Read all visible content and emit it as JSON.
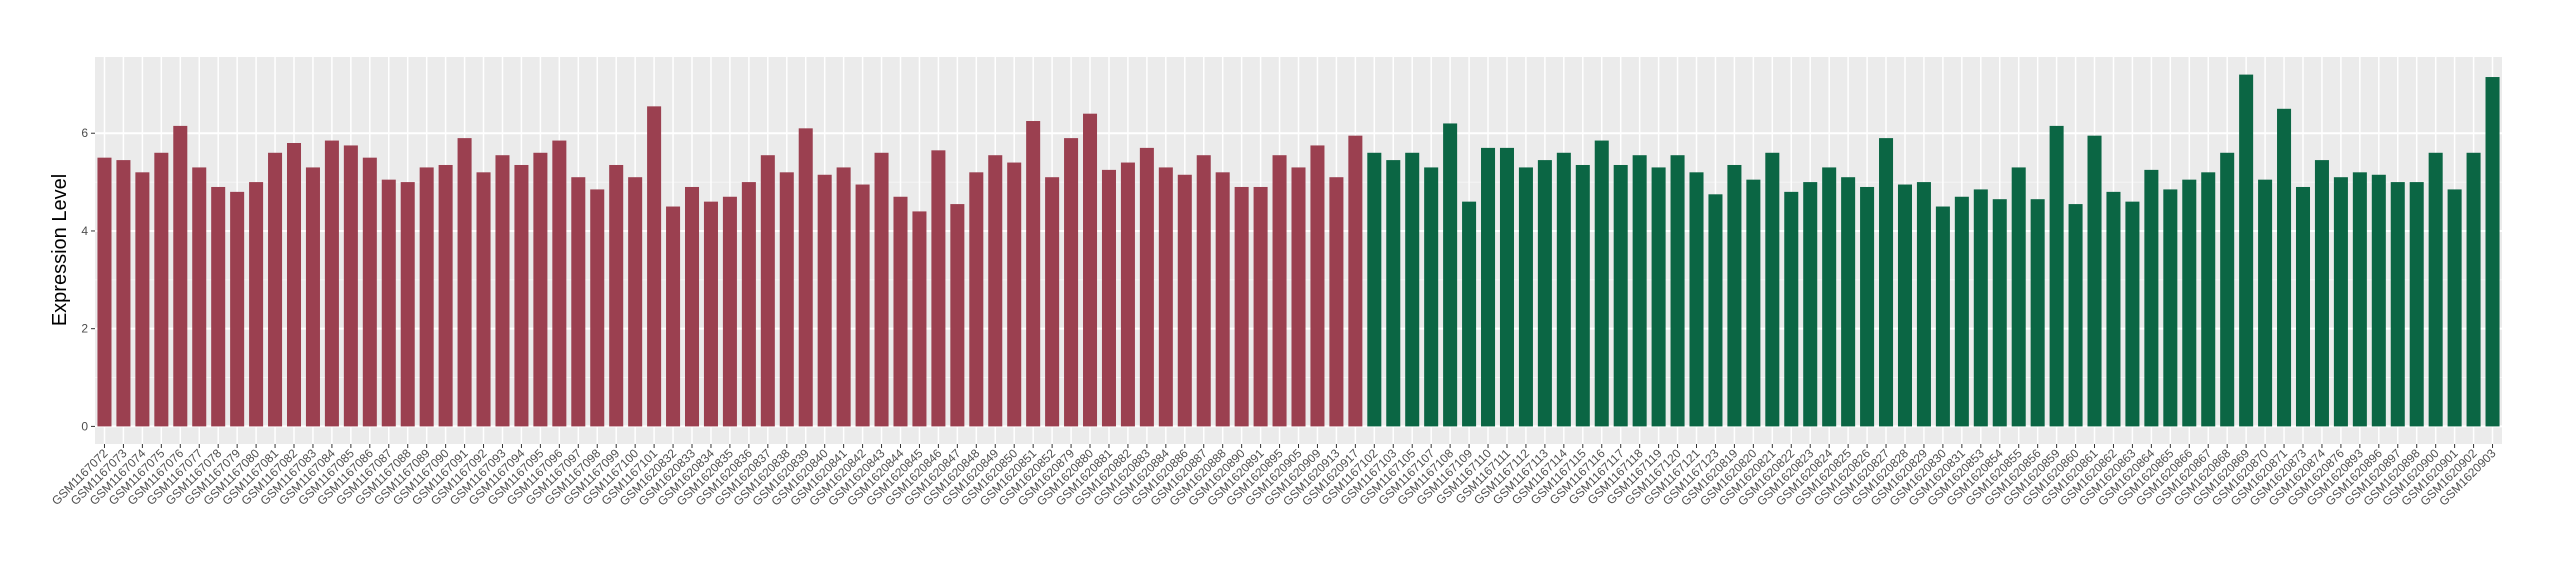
{
  "chart_data": {
    "type": "bar",
    "y_label": "Expression Level",
    "categories": [
      "GSM1167072",
      "GSM1167073",
      "GSM1167074",
      "GSM1167075",
      "GSM1167076",
      "GSM1167077",
      "GSM1167078",
      "GSM1167079",
      "GSM1167080",
      "GSM1167081",
      "GSM1167082",
      "GSM1167083",
      "GSM1167084",
      "GSM1167085",
      "GSM1167086",
      "GSM1167087",
      "GSM1167088",
      "GSM1167089",
      "GSM1167090",
      "GSM1167091",
      "GSM1167092",
      "GSM1167093",
      "GSM1167094",
      "GSM1167095",
      "GSM1167096",
      "GSM1167097",
      "GSM1167098",
      "GSM1167099",
      "GSM1167100",
      "GSM1167101",
      "GSM1620832",
      "GSM1620833",
      "GSM1620834",
      "GSM1620835",
      "GSM1620836",
      "GSM1620837",
      "GSM1620838",
      "GSM1620839",
      "GSM1620840",
      "GSM1620841",
      "GSM1620842",
      "GSM1620843",
      "GSM1620844",
      "GSM1620845",
      "GSM1620846",
      "GSM1620847",
      "GSM1620848",
      "GSM1620849",
      "GSM1620850",
      "GSM1620851",
      "GSM1620852",
      "GSM1620879",
      "GSM1620880",
      "GSM1620881",
      "GSM1620882",
      "GSM1620883",
      "GSM1620884",
      "GSM1620886",
      "GSM1620887",
      "GSM1620888",
      "GSM1620890",
      "GSM1620891",
      "GSM1620895",
      "GSM1620905",
      "GSM1620909",
      "GSM1620913",
      "GSM1620917",
      "GSM1167102",
      "GSM1167103",
      "GSM1167105",
      "GSM1167107",
      "GSM1167108",
      "GSM1167109",
      "GSM1167110",
      "GSM1167111",
      "GSM1167112",
      "GSM1167113",
      "GSM1167114",
      "GSM1167115",
      "GSM1167116",
      "GSM1167117",
      "GSM1167118",
      "GSM1167119",
      "GSM1167120",
      "GSM1167121",
      "GSM1167123",
      "GSM1620819",
      "GSM1620820",
      "GSM1620821",
      "GSM1620822",
      "GSM1620823",
      "GSM1620824",
      "GSM1620825",
      "GSM1620826",
      "GSM1620827",
      "GSM1620828",
      "GSM1620829",
      "GSM1620830",
      "GSM1620831",
      "GSM1620853",
      "GSM1620854",
      "GSM1620855",
      "GSM1620856",
      "GSM1620859",
      "GSM1620860",
      "GSM1620861",
      "GSM1620862",
      "GSM1620863",
      "GSM1620864",
      "GSM1620865",
      "GSM1620866",
      "GSM1620867",
      "GSM1620868",
      "GSM1620869",
      "GSM1620870",
      "GSM1620871",
      "GSM1620873",
      "GSM1620874",
      "GSM1620876",
      "GSM1620893",
      "GSM1620896",
      "GSM1620897",
      "GSM1620898",
      "GSM1620900",
      "GSM1620901",
      "GSM1620902",
      "GSM1620903"
    ],
    "series": [
      {
        "color": "#9b4050",
        "values": [
          5.5,
          5.45,
          5.2,
          5.6,
          6.15,
          5.3,
          4.9,
          4.8,
          5.0,
          5.6,
          5.8,
          5.3,
          5.85,
          5.75,
          5.5,
          5.05,
          5.0,
          5.3,
          5.35,
          5.9,
          5.2,
          5.55,
          5.35,
          5.6,
          5.85,
          5.1,
          4.85,
          5.35,
          5.1,
          6.55,
          4.5,
          4.9,
          4.6,
          4.7,
          5.0,
          5.55,
          5.2,
          6.1,
          5.15,
          5.3,
          4.95,
          5.6,
          4.7,
          4.4,
          5.65,
          4.55,
          5.2,
          5.55,
          5.4,
          6.25,
          5.1,
          5.9,
          6.4,
          5.25,
          5.4,
          5.7,
          5.3,
          5.15,
          5.55,
          5.2,
          4.9,
          4.9,
          5.55,
          5.3,
          5.75,
          5.1,
          5.95,
          null,
          null,
          null,
          null,
          null,
          null,
          null,
          null,
          null,
          null,
          null,
          null,
          null,
          null,
          null,
          null,
          null,
          null,
          null,
          null,
          null,
          null,
          null,
          null,
          null,
          null,
          null,
          null,
          null,
          null,
          null,
          null,
          null,
          null,
          null,
          null,
          null,
          null,
          null,
          null,
          null,
          null,
          null,
          null,
          null,
          null,
          null,
          null,
          null,
          null,
          null,
          null,
          null,
          null,
          null,
          null,
          null,
          null,
          null,
          null
        ]
      },
      {
        "color": "#0b6644",
        "values": [
          null,
          null,
          null,
          null,
          null,
          null,
          null,
          null,
          null,
          null,
          null,
          null,
          null,
          null,
          null,
          null,
          null,
          null,
          null,
          null,
          null,
          null,
          null,
          null,
          null,
          null,
          null,
          null,
          null,
          null,
          null,
          null,
          null,
          null,
          null,
          null,
          null,
          null,
          null,
          null,
          null,
          null,
          null,
          null,
          null,
          null,
          null,
          null,
          null,
          null,
          null,
          null,
          null,
          null,
          null,
          null,
          null,
          null,
          null,
          null,
          null,
          null,
          null,
          null,
          null,
          null,
          null,
          5.6,
          5.45,
          5.6,
          5.3,
          6.2,
          4.6,
          5.7,
          5.7,
          5.3,
          5.45,
          5.6,
          5.35,
          5.85,
          5.35,
          5.55,
          5.3,
          5.55,
          5.2,
          4.75,
          5.35,
          5.05,
          5.6,
          4.8,
          5.0,
          5.3,
          5.1,
          4.9,
          5.9,
          4.95,
          5.0,
          4.5,
          4.7,
          4.85,
          4.65,
          5.3,
          4.65,
          6.15,
          4.55,
          5.95,
          4.8,
          4.6,
          5.25,
          4.85,
          5.05,
          5.2,
          5.6,
          7.2,
          5.05,
          6.5,
          4.9,
          5.45,
          5.1,
          5.2,
          5.15,
          5.0,
          5.0,
          5.6,
          4.85,
          5.6,
          7.15
        ]
      }
    ],
    "ylim": [
      -0.36,
      7.56
    ],
    "yticks": [
      0,
      2,
      4,
      6
    ],
    "grid": true
  }
}
